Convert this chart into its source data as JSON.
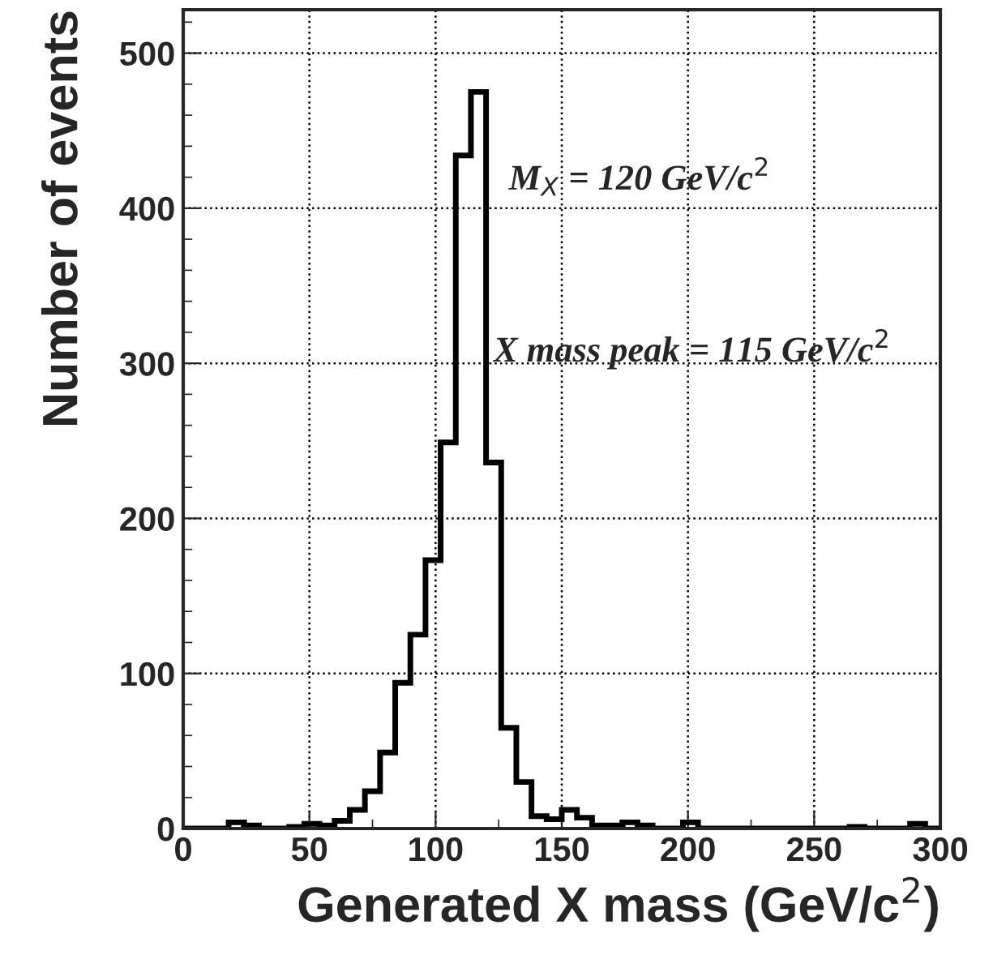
{
  "chart_data": {
    "type": "histogram",
    "xlabel": "Generated X mass (GeV/c$^{2}$)",
    "ylabel": "Number of events",
    "annotations": [
      "M$_{X}$ = 120 GeV/c$^{2}$",
      "X mass peak = 115 GeV/c$^{2}$"
    ],
    "bins": [
      0,
      6,
      12,
      18,
      24,
      30,
      36,
      42,
      48,
      54,
      60,
      66,
      72,
      78,
      84,
      90,
      96,
      102,
      108,
      114,
      120,
      126,
      132,
      138,
      144,
      150,
      156,
      162,
      168,
      174,
      180,
      186,
      192,
      198,
      204,
      210,
      216,
      222,
      228,
      234,
      240,
      246,
      252,
      258,
      264,
      270,
      276,
      282,
      288,
      294,
      300
    ],
    "values": [
      0,
      0,
      0,
      4,
      2,
      0,
      0,
      1,
      3,
      2,
      5,
      12,
      24,
      49,
      94,
      125,
      173,
      249,
      434,
      475,
      236,
      65,
      30,
      8,
      6,
      12,
      7,
      2,
      2,
      4,
      2,
      0,
      0,
      4,
      0,
      0,
      0,
      0,
      0,
      0,
      0,
      0,
      0,
      0,
      1,
      0,
      0,
      0,
      3,
      0
    ],
    "color": "#000000",
    "xlim": [
      0,
      300
    ],
    "ylim": [
      0,
      528
    ],
    "xticks": [
      0,
      50,
      100,
      150,
      200,
      250,
      300
    ],
    "yticks": [
      0,
      100,
      200,
      300,
      400,
      500
    ],
    "grid": true,
    "legend": false
  }
}
